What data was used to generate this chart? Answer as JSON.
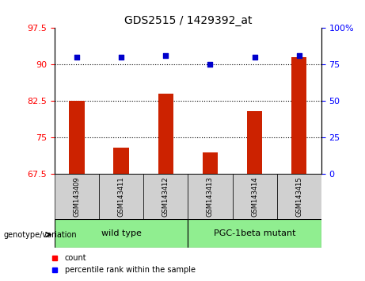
{
  "title": "GDS2515 / 1429392_at",
  "samples": [
    "GSM143409",
    "GSM143411",
    "GSM143412",
    "GSM143413",
    "GSM143414",
    "GSM143415"
  ],
  "counts": [
    82.5,
    73.0,
    84.0,
    72.0,
    80.5,
    91.5
  ],
  "percentile_ranks": [
    80,
    80,
    81,
    75,
    80,
    81
  ],
  "groups": [
    {
      "label": "wild type",
      "start": 0,
      "end": 3,
      "color": "#90EE90"
    },
    {
      "label": "PGC-1beta mutant",
      "start": 3,
      "end": 6,
      "color": "#90EE90"
    }
  ],
  "ylim_left": [
    67.5,
    97.5
  ],
  "ylim_right": [
    0,
    100
  ],
  "yticks_left": [
    67.5,
    75,
    82.5,
    90,
    97.5
  ],
  "yticks_right": [
    0,
    25,
    50,
    75,
    100
  ],
  "ytick_labels_right": [
    "0",
    "25",
    "50",
    "75",
    "100%"
  ],
  "hlines": [
    90,
    82.5,
    75
  ],
  "bar_color": "#CC2200",
  "dot_color": "#0000CC",
  "background_plot": "#FFFFFF",
  "background_label": "#C0C0C0",
  "background_group_wt": "#90EE90",
  "background_group_pgc": "#90EE90"
}
